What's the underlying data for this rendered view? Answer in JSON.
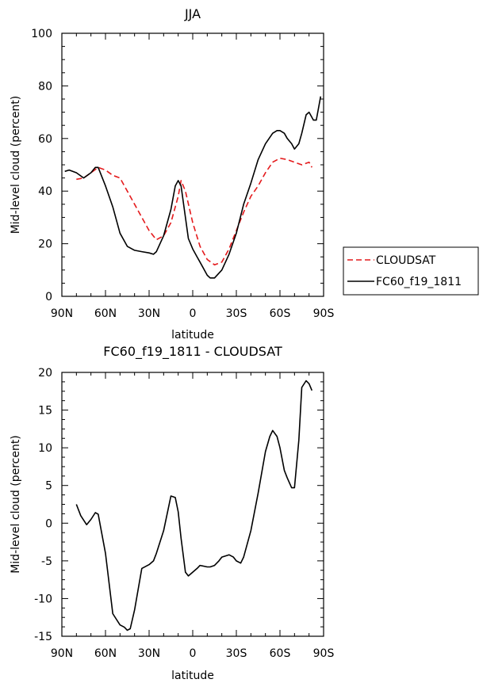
{
  "chart_data": [
    {
      "type": "line",
      "title": "JJA",
      "xlabel": "latitude",
      "ylabel": "Mid-level cloud (percent)",
      "x_ticks": [
        "90N",
        "60N",
        "30N",
        "0",
        "30S",
        "60S",
        "90S"
      ],
      "y_ticks": [
        "0",
        "20",
        "40",
        "60",
        "80",
        "100"
      ],
      "xlim": [
        90,
        -90
      ],
      "ylim": [
        0,
        100
      ],
      "grid": false,
      "legend_position": "right",
      "legend": [
        "CLOUDSAT",
        "FC60_f19_1811"
      ],
      "series": [
        {
          "name": "CLOUDSAT",
          "color": "#e41a1c",
          "dash": "dashed",
          "x": [
            80,
            75,
            70,
            65,
            60,
            55,
            50,
            45,
            40,
            35,
            30,
            25,
            20,
            15,
            10,
            8,
            5,
            0,
            -5,
            -10,
            -15,
            -20,
            -25,
            -30,
            -35,
            -40,
            -45,
            -50,
            -55,
            -60,
            -65,
            -70,
            -75,
            -80,
            -82
          ],
          "y": [
            44.5,
            45,
            47,
            49,
            48,
            46,
            45,
            40,
            35,
            30,
            25,
            21.5,
            23,
            28,
            38,
            44,
            40,
            28,
            19,
            14,
            12,
            13,
            18,
            25,
            32,
            38,
            42,
            47,
            51,
            52.5,
            52,
            51,
            50,
            51,
            49
          ]
        },
        {
          "name": "FC60_f19_1811",
          "color": "#000000",
          "dash": "solid",
          "x": [
            88,
            85,
            80,
            75,
            70,
            67,
            65,
            60,
            55,
            50,
            45,
            40,
            35,
            30,
            27,
            25,
            20,
            15,
            12,
            10,
            8,
            5,
            3,
            0,
            -3,
            -5,
            -10,
            -12,
            -15,
            -20,
            -25,
            -30,
            -35,
            -40,
            -45,
            -50,
            -55,
            -58,
            -60,
            -63,
            -65,
            -68,
            -70,
            -73,
            -75,
            -78,
            -80,
            -83,
            -85,
            -88
          ],
          "y": [
            47.5,
            48,
            47,
            45,
            47,
            49,
            49,
            42,
            34,
            24,
            19,
            17.5,
            17,
            16.5,
            16,
            17,
            23,
            33,
            42,
            44,
            42,
            30,
            22,
            18,
            15,
            13,
            8,
            7,
            7,
            10,
            16,
            24,
            35,
            43,
            52,
            58,
            62,
            63,
            63,
            62,
            60,
            58,
            56,
            58,
            62,
            69,
            70,
            67,
            67,
            76
          ]
        }
      ]
    },
    {
      "type": "line",
      "title": "FC60_f19_1811 - CLOUDSAT",
      "xlabel": "latitude",
      "ylabel": "Mid-level cloud (percent)",
      "x_ticks": [
        "90N",
        "60N",
        "30N",
        "0",
        "30S",
        "60S",
        "90S"
      ],
      "y_ticks": [
        "-15",
        "-10",
        "-5",
        "0",
        "5",
        "10",
        "15",
        "20"
      ],
      "xlim": [
        90,
        -90
      ],
      "ylim": [
        -15,
        20
      ],
      "grid": false,
      "series": [
        {
          "color": "#000000",
          "dash": "solid",
          "x": [
            80,
            77,
            73,
            70,
            67,
            65,
            60,
            55,
            50,
            47,
            45,
            43,
            40,
            35,
            30,
            27,
            25,
            20,
            15,
            12,
            10,
            8,
            5,
            3,
            0,
            -3,
            -5,
            -10,
            -12,
            -15,
            -18,
            -20,
            -25,
            -28,
            -30,
            -33,
            -35,
            -40,
            -45,
            -50,
            -53,
            -55,
            -58,
            -60,
            -63,
            -65,
            -68,
            -70,
            -73,
            -75,
            -78,
            -80,
            -82
          ],
          "y": [
            2.5,
            1,
            -0.2,
            0.5,
            1.4,
            1.2,
            -4,
            -12,
            -13.5,
            -13.8,
            -14.2,
            -14,
            -11.5,
            -6,
            -5.5,
            -5,
            -4,
            -1,
            3.6,
            3.4,
            1.5,
            -2,
            -6.5,
            -7,
            -6.5,
            -6,
            -5.6,
            -5.8,
            -5.8,
            -5.6,
            -5,
            -4.5,
            -4.2,
            -4.5,
            -5,
            -5.3,
            -4.5,
            -1,
            4,
            9.5,
            11.5,
            12.3,
            11.5,
            10,
            7,
            6,
            4.7,
            4.7,
            11,
            18,
            18.9,
            18.5,
            17.6
          ]
        }
      ]
    }
  ]
}
